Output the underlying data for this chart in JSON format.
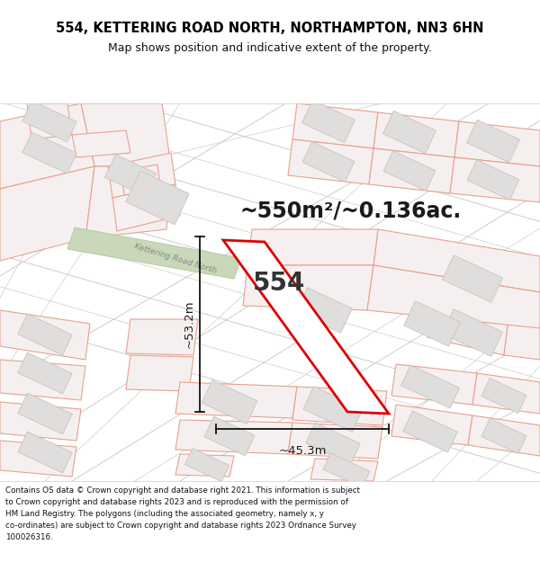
{
  "title_line1": "554, KETTERING ROAD NORTH, NORTHAMPTON, NN3 6HN",
  "title_line2": "Map shows position and indicative extent of the property.",
  "area_text": "~550m²/~0.136ac.",
  "label_554": "554",
  "dim_vertical": "~53.2m",
  "dim_horizontal": "~45.3m",
  "footer_lines": [
    "Contains OS data © Crown copyright and database right 2021. This information is subject",
    "to Crown copyright and database rights 2023 and is reproduced with the permission of",
    "HM Land Registry. The polygons (including the associated geometry, namely x, y",
    "co-ordinates) are subject to Crown copyright and database rights 2023 Ordnance Survey",
    "100026316."
  ],
  "map_bg": "#ffffff",
  "road_gray": "#d0ccc8",
  "building_fill": "#e0dedd",
  "building_outline": "#c8c4c0",
  "plot_outline_fill": "#e8e4e2",
  "property_line_color": "#e8a090",
  "plot_red": "#dd0000",
  "green_strip": "#c8d8b8",
  "text_dark": "#1a1a1a",
  "road_label_color": "#888888",
  "header_bg": "#ffffff",
  "footer_bg": "#ffffff"
}
